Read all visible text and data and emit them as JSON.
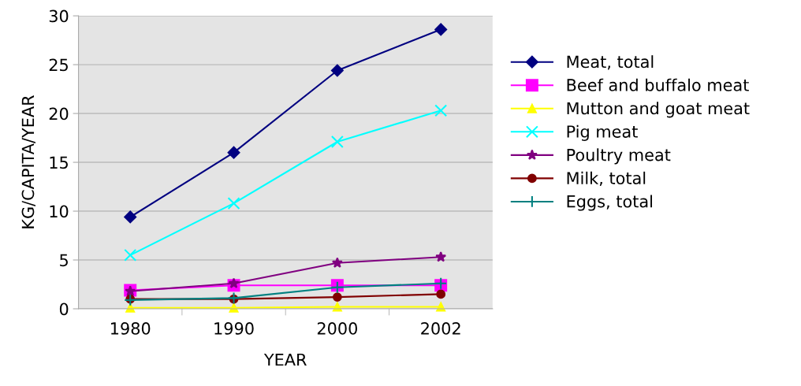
{
  "chart_data": {
    "type": "line",
    "xlabel": "YEAR",
    "ylabel": "KG/CAPITA/YEAR",
    "categories": [
      "1980",
      "1990",
      "2000",
      "2002"
    ],
    "ylim": [
      0,
      30
    ],
    "yticks": [
      0,
      5,
      10,
      15,
      20,
      25,
      30
    ],
    "grid": "y",
    "legend": "right",
    "series": [
      {
        "name": "Meat, total",
        "color": "#000080",
        "marker": "diamond",
        "values": [
          9.4,
          16.0,
          24.4,
          28.6
        ]
      },
      {
        "name": "Beef and buffalo meat",
        "color": "#ff00ff",
        "marker": "square",
        "values": [
          1.9,
          2.4,
          2.4,
          2.4
        ]
      },
      {
        "name": "Mutton and goat meat",
        "color": "#ffff00",
        "marker": "triangle",
        "values": [
          0.1,
          0.1,
          0.2,
          0.2
        ]
      },
      {
        "name": "Pig meat",
        "color": "#00ffff",
        "marker": "cross",
        "values": [
          5.5,
          10.8,
          17.1,
          20.3
        ]
      },
      {
        "name": "Poultry meat",
        "color": "#800080",
        "marker": "star",
        "values": [
          1.8,
          2.6,
          4.7,
          5.3
        ]
      },
      {
        "name": "Milk, total",
        "color": "#800000",
        "marker": "circle",
        "values": [
          1.0,
          1.0,
          1.2,
          1.5
        ]
      },
      {
        "name": "Eggs, total",
        "color": "#008080",
        "marker": "plus",
        "values": [
          0.9,
          1.1,
          2.2,
          2.6
        ]
      }
    ]
  }
}
